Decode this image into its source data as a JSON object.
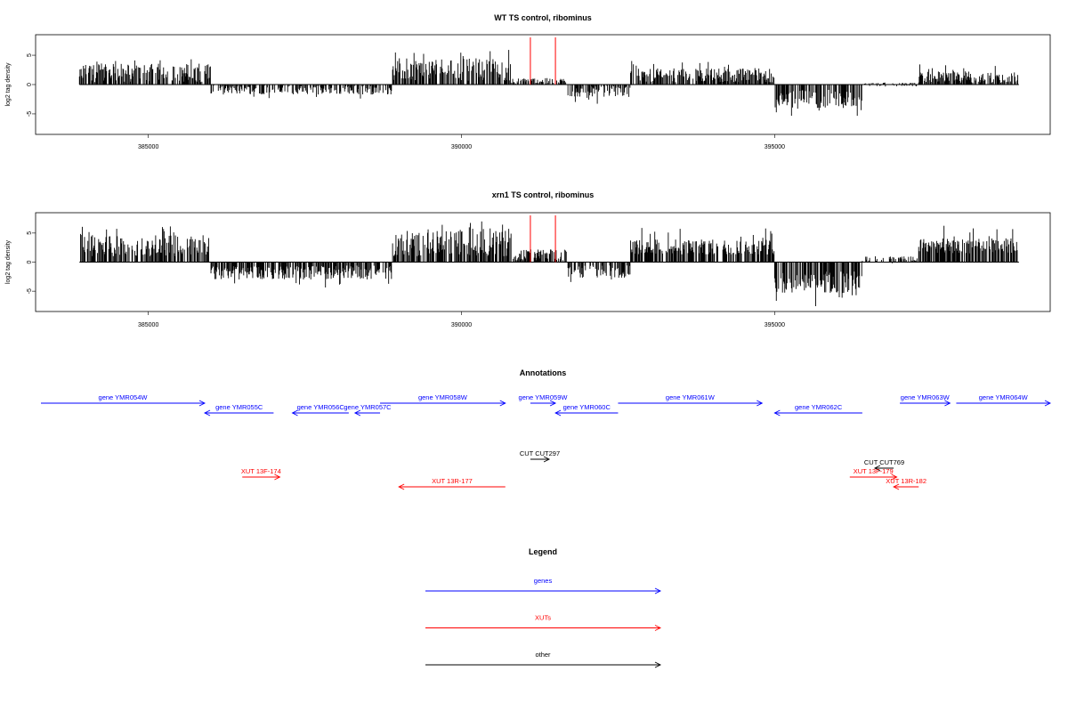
{
  "chart_data": [
    {
      "type": "bar",
      "title": "WT TS control, ribominus",
      "ylabel": "log2 tag density",
      "xlim": [
        383200,
        399400
      ],
      "ylim": [
        -8.5,
        8.5
      ],
      "x_ticks": [
        385000,
        390000,
        395000
      ],
      "y_ticks": [
        -5,
        0,
        5
      ],
      "markers": [
        391100,
        391500
      ],
      "segments": [
        {
          "start": 383900,
          "end": 386000,
          "mean": 2.0,
          "amp": 1.6
        },
        {
          "start": 386000,
          "end": 388900,
          "mean": -0.8,
          "amp": 0.9
        },
        {
          "start": 388900,
          "end": 390800,
          "mean": 2.6,
          "amp": 2.0
        },
        {
          "start": 390800,
          "end": 391700,
          "mean": 0.5,
          "amp": 0.6
        },
        {
          "start": 391700,
          "end": 392700,
          "mean": -1.2,
          "amp": 1.0
        },
        {
          "start": 392700,
          "end": 395000,
          "mean": 1.6,
          "amp": 1.2
        },
        {
          "start": 395000,
          "end": 396400,
          "mean": -2.5,
          "amp": 1.6
        },
        {
          "start": 396400,
          "end": 397300,
          "mean": 0.0,
          "amp": 0.3
        },
        {
          "start": 397300,
          "end": 398900,
          "mean": 1.3,
          "amp": 1.0
        }
      ]
    },
    {
      "type": "bar",
      "title": "xrn1 TS control, ribominus",
      "ylabel": "log2 tag density",
      "xlim": [
        383200,
        399400
      ],
      "ylim": [
        -8.5,
        8.5
      ],
      "x_ticks": [
        385000,
        390000,
        395000
      ],
      "y_ticks": [
        -5,
        0,
        5
      ],
      "markers": [
        391100,
        391500
      ],
      "segments": [
        {
          "start": 383900,
          "end": 386000,
          "mean": 2.8,
          "amp": 1.8
        },
        {
          "start": 386000,
          "end": 388900,
          "mean": -1.8,
          "amp": 1.2
        },
        {
          "start": 388900,
          "end": 390800,
          "mean": 3.2,
          "amp": 2.2
        },
        {
          "start": 390800,
          "end": 391700,
          "mean": 1.2,
          "amp": 1.0
        },
        {
          "start": 391700,
          "end": 392700,
          "mean": -1.6,
          "amp": 1.1
        },
        {
          "start": 392700,
          "end": 395000,
          "mean": 2.6,
          "amp": 1.3
        },
        {
          "start": 395000,
          "end": 396400,
          "mean": -3.5,
          "amp": 1.9
        },
        {
          "start": 396400,
          "end": 397300,
          "mean": 0.4,
          "amp": 0.6
        },
        {
          "start": 397300,
          "end": 398900,
          "mean": 2.8,
          "amp": 1.3
        }
      ]
    }
  ],
  "annotations": {
    "title": "Annotations",
    "colors": {
      "genes": "#0000ff",
      "XUTs": "#ff0000",
      "other": "#000000"
    },
    "features": [
      {
        "label": "gene YMR054W",
        "start": 383200,
        "end": 385900,
        "strand": "+",
        "type": "genes",
        "row": 0
      },
      {
        "label": "gene YMR055C",
        "start": 385900,
        "end": 387000,
        "strand": "-",
        "type": "genes",
        "row": 1
      },
      {
        "label": "gene YMR056C",
        "start": 387300,
        "end": 388200,
        "strand": "-",
        "type": "genes",
        "row": 1
      },
      {
        "label": "gene YMR057C",
        "start": 388300,
        "end": 388700,
        "strand": "-",
        "type": "genes",
        "row": 1
      },
      {
        "label": "gene YMR058W",
        "start": 388700,
        "end": 390700,
        "strand": "+",
        "type": "genes",
        "row": 0
      },
      {
        "label": "gene YMR059W",
        "start": 391100,
        "end": 391500,
        "strand": "+",
        "type": "genes",
        "row": 0
      },
      {
        "label": "gene YMR060C",
        "start": 391500,
        "end": 392500,
        "strand": "-",
        "type": "genes",
        "row": 1
      },
      {
        "label": "gene YMR061W",
        "start": 392500,
        "end": 394800,
        "strand": "+",
        "type": "genes",
        "row": 0
      },
      {
        "label": "gene YMR062C",
        "start": 395000,
        "end": 396400,
        "strand": "-",
        "type": "genes",
        "row": 1
      },
      {
        "label": "gene YMR063W",
        "start": 397000,
        "end": 397800,
        "strand": "+",
        "type": "genes",
        "row": 0
      },
      {
        "label": "gene YMR064W",
        "start": 397900,
        "end": 399400,
        "strand": "+",
        "type": "genes",
        "row": 0
      },
      {
        "label": "CUT CUT297",
        "start": 391100,
        "end": 391400,
        "strand": "+",
        "type": "other",
        "row": 2
      },
      {
        "label": "CUT CUT769",
        "start": 396600,
        "end": 396900,
        "strand": "-",
        "type": "other",
        "row": 3
      },
      {
        "label": "XUT 13F-174",
        "start": 386500,
        "end": 387100,
        "strand": "+",
        "type": "XUTs",
        "row": 4
      },
      {
        "label": "XUT 13R-177",
        "start": 389000,
        "end": 390700,
        "strand": "-",
        "type": "XUTs",
        "row": 5
      },
      {
        "label": "XUT 13F-179",
        "start": 396200,
        "end": 396950,
        "strand": "+",
        "type": "XUTs",
        "row": 4
      },
      {
        "label": "XUT 13R-182",
        "start": 396900,
        "end": 397300,
        "strand": "-",
        "type": "XUTs",
        "row": 5
      }
    ]
  },
  "legend": {
    "title": "Legend",
    "items": [
      {
        "label": "genes",
        "color": "#0000ff"
      },
      {
        "label": "XUTs",
        "color": "#ff0000"
      },
      {
        "label": "other",
        "color": "#000000"
      }
    ]
  }
}
